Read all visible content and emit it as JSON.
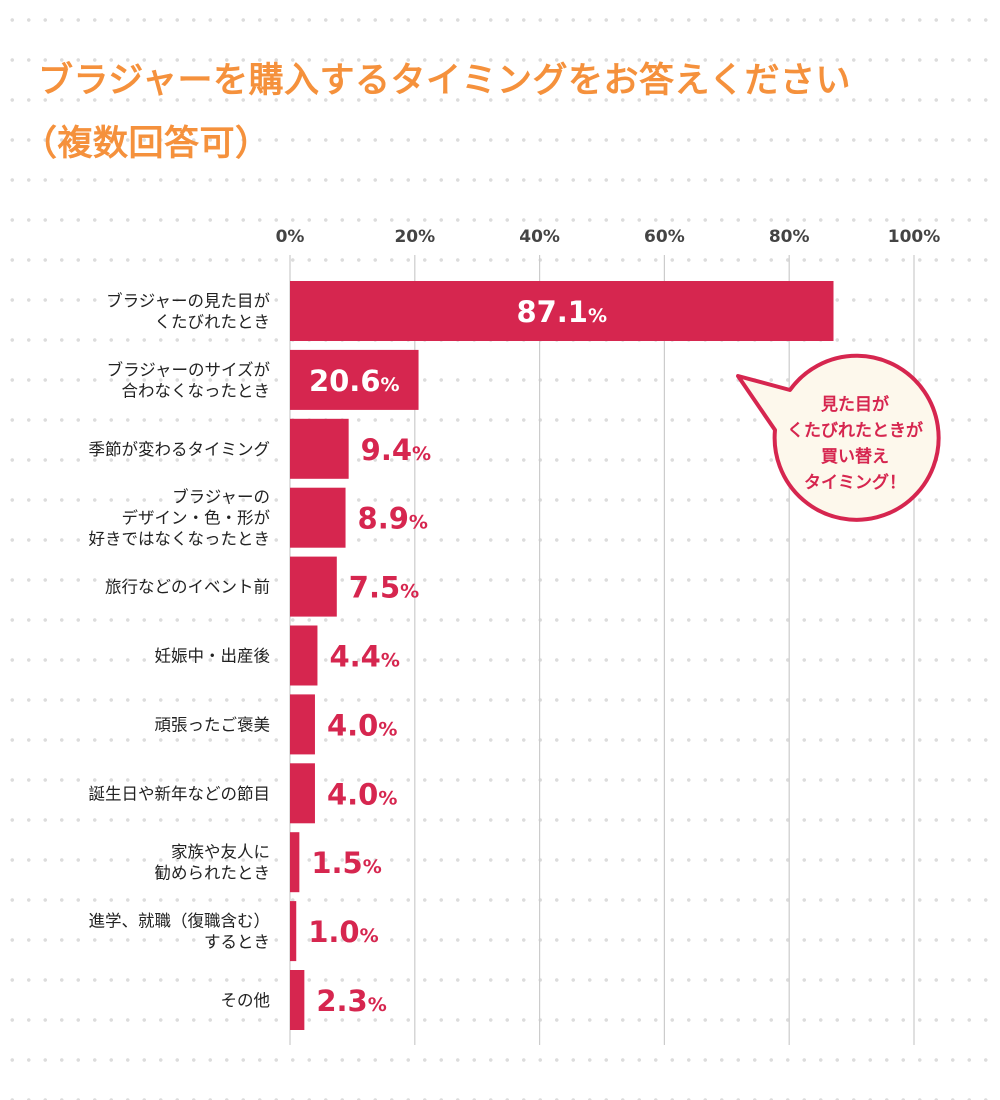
{
  "title_line1": "ブラジャーを購入するタイミングをお答えください",
  "title_line2": "（複数回答可）",
  "callout": [
    "見た目が",
    "くたびれたときが",
    "買い替え",
    "タイミング！"
  ],
  "colors": {
    "title": "#f5913c",
    "bar": "#d6264f",
    "callout_fill": "#fdf8ec",
    "grid": "#cccccc"
  },
  "chart_data": {
    "type": "bar",
    "orientation": "horizontal",
    "xlim": [
      0,
      100
    ],
    "x_ticks": [
      "0%",
      "20%",
      "40%",
      "60%",
      "80%",
      "100%"
    ],
    "grid": true,
    "categories": [
      [
        "ブラジャーの見た目が",
        "くたびれたとき"
      ],
      [
        "ブラジャーのサイズが",
        "合わなくなったとき"
      ],
      [
        "季節が変わるタイミング"
      ],
      [
        "ブラジャーの",
        "デザイン・色・形が",
        "好きではなくなったとき"
      ],
      [
        "旅行などのイベント前"
      ],
      [
        "妊娠中・出産後"
      ],
      [
        "頑張ったご褒美"
      ],
      [
        "誕生日や新年などの節目"
      ],
      [
        "家族や友人に",
        "勧められたとき"
      ],
      [
        "進学、就職（復職含む）",
        "するとき"
      ],
      [
        "その他"
      ]
    ],
    "values": [
      87.1,
      20.6,
      9.4,
      8.9,
      7.5,
      4.4,
      4.0,
      4.0,
      1.5,
      1.0,
      2.3
    ],
    "value_labels": [
      "87.1",
      "20.6",
      "9.4",
      "8.9",
      "7.5",
      "4.4",
      "4.0",
      "4.0",
      "1.5",
      "1.0",
      "2.3"
    ],
    "unit": "%"
  }
}
